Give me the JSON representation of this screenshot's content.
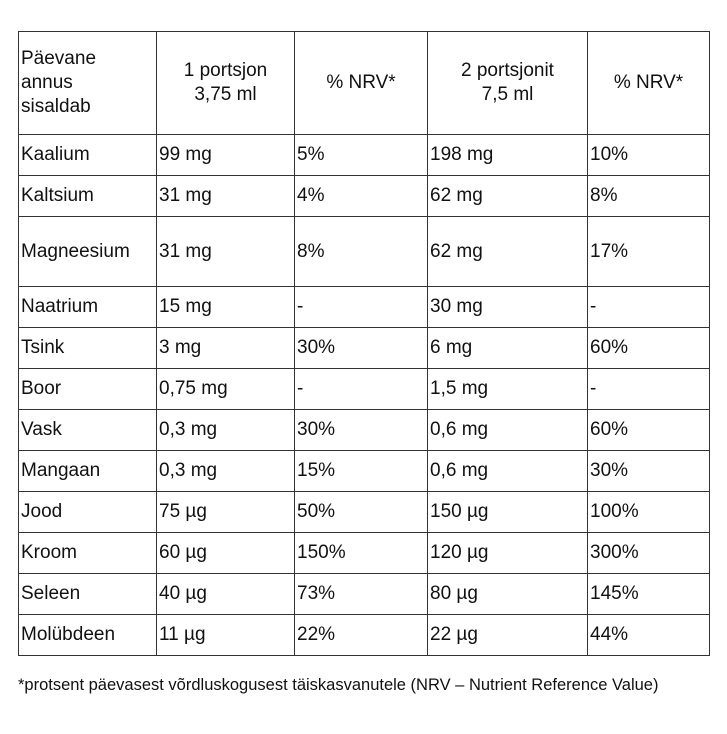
{
  "table": {
    "headers": [
      "Päevane annus sisaldab",
      "1 portsjon 3,75 ml",
      "% NRV*",
      "2 portsjonit 7,5 ml",
      "% NRV*"
    ],
    "header_lines": {
      "col1": [
        "Päevane",
        "annus",
        "sisaldab"
      ],
      "col2": [
        "1 portsjon",
        "3,75 ml"
      ],
      "col4": [
        "2 portsjonit",
        "7,5 ml"
      ]
    },
    "rows": [
      [
        "Kaalium",
        "99 mg",
        "5%",
        "198 mg",
        "10%"
      ],
      [
        "Kaltsium",
        "31 mg",
        "4%",
        "62 mg",
        "8%"
      ],
      [
        "Magneesium",
        "31 mg",
        "8%",
        "62 mg",
        "17%"
      ],
      [
        "Naatrium",
        "15 mg",
        "-",
        "30 mg",
        "-"
      ],
      [
        "Tsink",
        "3 mg",
        "30%",
        "6 mg",
        "60%"
      ],
      [
        "Boor",
        "0,75 mg",
        "-",
        "1,5 mg",
        "-"
      ],
      [
        "Vask",
        "0,3 mg",
        "30%",
        "0,6 mg",
        "60%"
      ],
      [
        "Mangaan",
        "0,3 mg",
        "15%",
        "0,6 mg",
        "30%"
      ],
      [
        "Jood",
        "75 µg",
        "50%",
        "150 µg",
        "100%"
      ],
      [
        "Kroom",
        "60 µg",
        "150%",
        "120 µg",
        "300%"
      ],
      [
        "Seleen",
        "40 µg",
        "73%",
        "80 µg",
        "145%"
      ],
      [
        "Molübdeen",
        "11 µg",
        "22%",
        "22 µg",
        "44%"
      ]
    ]
  },
  "footnote": "*protsent päevasest võrdluskogusest täiskasvanutele (NRV – Nutrient Reference Value)"
}
